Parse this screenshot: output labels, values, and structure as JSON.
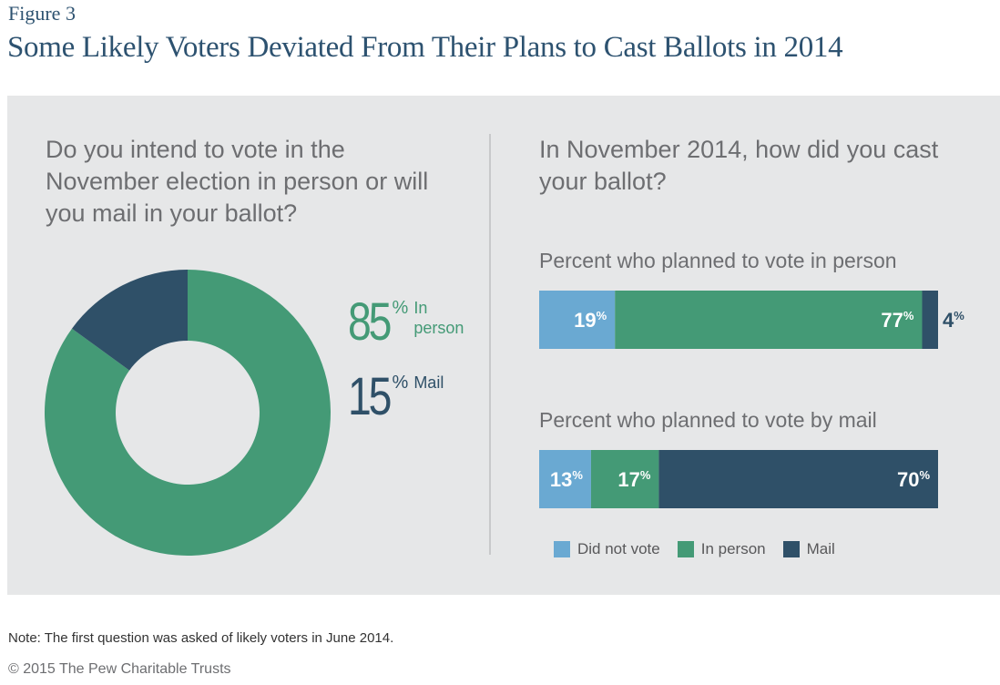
{
  "figure_label": "Figure 3",
  "title": "Some Likely Voters Deviated From Their Plans to Cast Ballots in 2014",
  "colors": {
    "did_not_vote": "#6aa9d2",
    "in_person": "#449a76",
    "mail": "#2f5068",
    "panel_bg": "#e6e7e8"
  },
  "chart_data": [
    {
      "type": "pie",
      "style": "donut",
      "title": "Do you intend to vote in the November election in person or will you mail in your ballot?",
      "slices": [
        {
          "label": "In person",
          "value": 85,
          "value_text": "85",
          "unit": "%",
          "color": "#449a76"
        },
        {
          "label": "Mail",
          "value": 15,
          "value_text": "15",
          "unit": "%",
          "color": "#2f5068"
        }
      ]
    },
    {
      "type": "bar",
      "orientation": "horizontal",
      "stacked": true,
      "title": "In November 2014, how did you cast your ballot?",
      "categories": [
        "Percent who planned to vote in person",
        "Percent who planned to vote by mail"
      ],
      "series": [
        {
          "name": "Did not vote",
          "values": [
            19,
            13
          ],
          "labels": [
            "19",
            "13"
          ],
          "color": "#6aa9d2"
        },
        {
          "name": "In person",
          "values": [
            77,
            17
          ],
          "labels": [
            "77",
            "17"
          ],
          "color": "#449a76"
        },
        {
          "name": "Mail",
          "values": [
            4,
            70
          ],
          "labels": [
            "4",
            "70"
          ],
          "color": "#2f5068"
        }
      ],
      "unit": "%",
      "legend": "bottom",
      "xlim": [
        0,
        100
      ]
    }
  ],
  "note": "Note: The first question was asked of likely voters in June 2014.",
  "copyright": "© 2015 The Pew Charitable Trusts"
}
